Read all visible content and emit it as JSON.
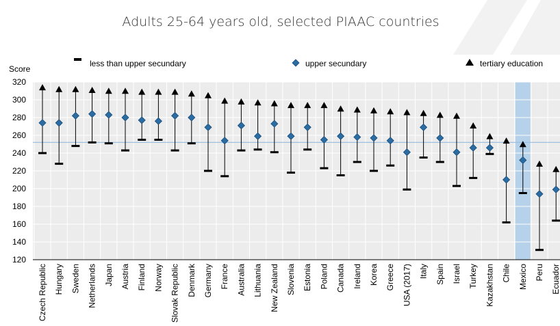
{
  "chart_data": {
    "type": "range",
    "title": "Adults 25-64 years old, selected PIAAC countries",
    "ylabel": "Score",
    "ylim": [
      120,
      320
    ],
    "yticks": [
      120,
      140,
      160,
      180,
      200,
      220,
      240,
      260,
      280,
      300,
      320
    ],
    "reference_line": 252,
    "highlight_category": "Mexico",
    "grid": true,
    "legend_position": "top",
    "colors": {
      "upper": "#2b6ca3",
      "marker": "#000000",
      "grid": "#ffffff",
      "plot_bg": "#ececec",
      "highlight": "#b6d1ea",
      "reference": "#9dbfe0"
    },
    "series": [
      {
        "name": "less than upper secundary",
        "marker": "dash"
      },
      {
        "name": "upper secundary",
        "marker": "diamond"
      },
      {
        "name": "tertiary education",
        "marker": "triangle"
      }
    ],
    "categories": [
      "Czech Republic",
      "Hungary",
      "Sweden",
      "Netherlands",
      "Japan",
      "Austria",
      "Finland",
      "Norway",
      "Slovak Republic",
      "Denmark",
      "Germany",
      "France",
      "Australia",
      "Lithuania",
      "New Zealand",
      "Slovenia",
      "Estonia",
      "Poland",
      "Canada",
      "Ireland",
      "Korea",
      "Greece",
      "USA (2017)",
      "Italy",
      "Spain",
      "Israel",
      "Turkey",
      "Kazakhstan",
      "Chile",
      "Mexico",
      "Peru",
      "Ecuador"
    ],
    "less_than_upper_secundary": [
      240,
      228,
      248,
      252,
      251,
      243,
      255,
      255,
      243,
      251,
      220,
      214,
      243,
      244,
      241,
      218,
      244,
      223,
      215,
      230,
      220,
      226,
      199,
      235,
      230,
      203,
      212,
      239,
      162,
      195,
      131,
      164
    ],
    "upper_secundary": [
      274,
      274,
      282,
      284,
      283,
      280,
      277,
      276,
      282,
      280,
      269,
      254,
      271,
      259,
      273,
      259,
      269,
      255,
      259,
      258,
      257,
      254,
      241,
      269,
      257,
      241,
      246,
      246,
      210,
      232,
      194,
      199
    ],
    "tertiary_education": [
      313,
      311,
      311,
      310,
      309,
      309,
      308,
      308,
      308,
      306,
      304,
      298,
      297,
      296,
      295,
      293,
      293,
      293,
      289,
      288,
      287,
      286,
      285,
      284,
      282,
      281,
      270,
      258,
      253,
      249,
      227,
      221
    ]
  }
}
